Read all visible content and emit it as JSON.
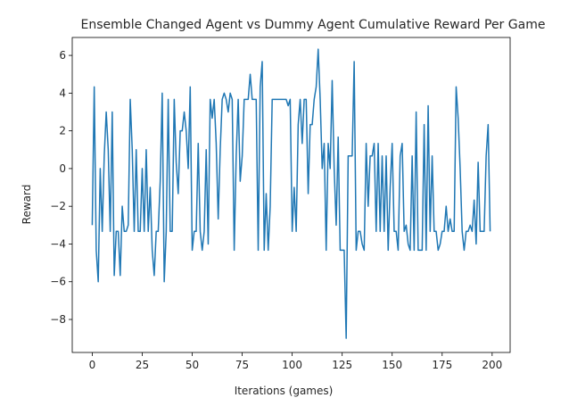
{
  "chart_data": {
    "type": "line",
    "title": "Ensemble Changed Agent vs Dummy Agent Cumulative Reward Per Game",
    "xlabel": "Iterations (games)",
    "ylabel": "Reward",
    "xlim": [
      -10,
      209
    ],
    "ylim": [
      -9.75,
      6.95
    ],
    "xticks": [
      0,
      25,
      50,
      75,
      100,
      125,
      150,
      175,
      200
    ],
    "yticks": [
      -8,
      -6,
      -4,
      -2,
      0,
      2,
      4,
      6
    ],
    "ytick_labels": [
      "−8",
      "−6",
      "−4",
      "−2",
      "0",
      "2",
      "4",
      "6"
    ],
    "grid": false,
    "line_color": "#1f77b4",
    "series": [
      {
        "values": [
          -3.0,
          4.33,
          -4.33,
          -6.0,
          0.0,
          -3.33,
          0.67,
          3.0,
          1.0,
          -3.33,
          3.0,
          -5.67,
          -3.33,
          -3.33,
          -5.67,
          -2.0,
          -3.33,
          -3.33,
          -3.0,
          3.67,
          1.0,
          -3.33,
          1.0,
          -3.33,
          -3.33,
          0.0,
          -3.33,
          1.0,
          -3.33,
          -1.0,
          -4.33,
          -5.67,
          -3.33,
          -3.33,
          -0.67,
          4.0,
          -6.0,
          -3.33,
          3.67,
          -3.33,
          -3.33,
          3.67,
          0.33,
          -1.33,
          2.0,
          2.0,
          3.0,
          2.0,
          0.0,
          4.33,
          -4.33,
          -3.33,
          -3.33,
          1.33,
          -3.33,
          -4.33,
          -3.33,
          1.0,
          -4.0,
          3.67,
          2.67,
          3.67,
          1.33,
          -2.67,
          1.0,
          3.67,
          4.0,
          3.67,
          3.0,
          4.0,
          3.67,
          -4.33,
          0.67,
          3.67,
          -0.67,
          0.67,
          3.67,
          3.67,
          3.67,
          5.0,
          3.67,
          3.67,
          3.67,
          -4.33,
          4.33,
          5.67,
          -4.33,
          -1.33,
          -4.33,
          -2.0,
          3.67,
          3.67,
          3.67,
          3.67,
          3.67,
          3.67,
          3.67,
          3.67,
          3.33,
          3.67,
          -3.33,
          -1.0,
          -3.33,
          2.33,
          3.67,
          1.33,
          3.67,
          3.67,
          -1.33,
          2.33,
          2.33,
          3.67,
          4.33,
          6.33,
          3.67,
          0.0,
          1.33,
          -4.33,
          1.33,
          0.0,
          4.67,
          0.0,
          -3.0,
          1.67,
          -4.33,
          -4.33,
          -4.33,
          -9.0,
          0.67,
          0.67,
          0.67,
          5.67,
          -4.33,
          -3.33,
          -3.33,
          -4.0,
          -4.33,
          1.33,
          -2.0,
          0.67,
          0.67,
          1.33,
          -3.33,
          1.33,
          -3.33,
          0.67,
          -3.33,
          0.67,
          -4.33,
          -1.0,
          1.33,
          -3.33,
          -3.33,
          -4.33,
          0.67,
          1.33,
          -3.33,
          -3.0,
          -4.0,
          -4.33,
          0.67,
          -4.33,
          3.0,
          -4.33,
          -4.33,
          -4.33,
          2.33,
          -4.33,
          3.33,
          -3.33,
          0.67,
          -3.33,
          -3.33,
          -4.33,
          -4.0,
          -3.33,
          -3.33,
          -2.0,
          -3.33,
          -2.67,
          -3.33,
          -3.33,
          4.33,
          2.67,
          0.0,
          -3.33,
          -4.33,
          -3.33,
          -3.33,
          -3.0,
          -3.33,
          -1.67,
          -4.0,
          0.33,
          -3.33,
          -3.33,
          -3.33,
          0.67,
          2.33,
          -3.33
        ]
      }
    ]
  }
}
